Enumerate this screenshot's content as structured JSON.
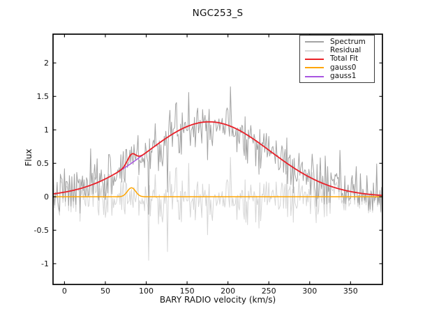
{
  "chart_data": {
    "type": "line",
    "title": "NGC253_S",
    "xlabel": "BARY RADIO velocity (km/s)",
    "ylabel": "Flux",
    "xlim": [
      -14,
      389
    ],
    "ylim": [
      -1.31,
      2.43
    ],
    "xticks": [
      0,
      50,
      100,
      150,
      200,
      250,
      300,
      350
    ],
    "yticks": [
      -1,
      -0.5,
      0,
      0.5,
      1,
      1.5,
      2
    ],
    "grid": false,
    "legend_position": "upper right",
    "series": [
      {
        "name": "Spectrum",
        "kind": "spectrum",
        "color": "#a3a3a3",
        "width": 1.0,
        "description": "observed spectrum = total fit + noise, peaks near 1.55 around v=150"
      },
      {
        "name": "Residual",
        "kind": "residual",
        "color": "#d6d6d6",
        "width": 1.0,
        "description": "spectrum minus total fit, scatter about 0"
      },
      {
        "name": "Total Fit",
        "kind": "total",
        "color": "#ea2227",
        "width": 1.8,
        "description": "sum of gauss0 and gauss1, peak 1.12 at v=177 with small bump at v=82"
      },
      {
        "name": "gauss0",
        "kind": "gauss0",
        "color": "#ffa500",
        "width": 1.5,
        "description": "narrow component"
      },
      {
        "name": "gauss1",
        "kind": "gauss1",
        "color": "#a855e0",
        "width": 1.5,
        "description": "broad component, hidden under total fit except near v=70-105"
      }
    ],
    "components": {
      "gauss0": {
        "amplitude": 0.135,
        "center": 82,
        "sigma": 5
      },
      "gauss1": {
        "amplitude": 1.12,
        "center": 177,
        "sigma": 75
      }
    },
    "sampling": {
      "x_step": 1.0
    },
    "noise": {
      "sigma": 0.18,
      "seed": 7,
      "outliers": [
        {
          "x": 103,
          "value": -0.95
        },
        {
          "x": 126,
          "value": -0.82
        },
        {
          "x": 152,
          "value": 0.5
        },
        {
          "x": 136,
          "value": 0.42
        }
      ]
    },
    "axis_color": "#000000",
    "tick_direction": "in",
    "tick_length": 4.5
  }
}
